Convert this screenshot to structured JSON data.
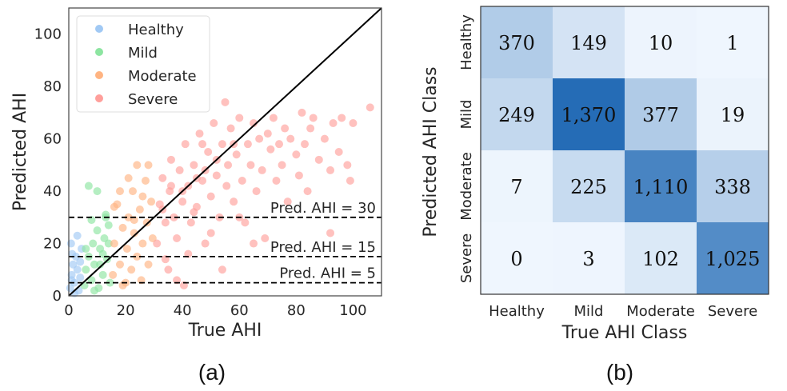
{
  "chart_data": [
    {
      "type": "scatter",
      "panel_label": "(a)",
      "xlabel": "True AHI",
      "ylabel": "Predicted AHI",
      "xlim": [
        0,
        110
      ],
      "ylim": [
        0,
        110
      ],
      "xticks": [
        "0",
        "20",
        "40",
        "60",
        "80",
        "100"
      ],
      "yticks": [
        "0",
        "20",
        "40",
        "60",
        "80",
        "100"
      ],
      "grid": false,
      "legend_position": "top-left",
      "identity_line": true,
      "reference_lines": [
        {
          "y": 30,
          "label": "Pred. AHI = 30"
        },
        {
          "y": 15,
          "label": "Pred. AHI = 15"
        },
        {
          "y": 5,
          "label": "Pred. AHI = 5"
        }
      ],
      "series": [
        {
          "name": "Healthy",
          "color": "#a1c9f4",
          "points": [
            [
              0.5,
              3
            ],
            [
              1,
              8
            ],
            [
              1.5,
              12
            ],
            [
              2,
              5
            ],
            [
              2.5,
              15
            ],
            [
              3,
              10
            ],
            [
              3.5,
              2
            ],
            [
              4,
              7
            ],
            [
              4.5,
              18
            ],
            [
              0.8,
              20
            ],
            [
              1.2,
              16
            ],
            [
              3,
              23
            ],
            [
              2,
              1
            ],
            [
              4,
              13
            ],
            [
              1,
              6
            ]
          ]
        },
        {
          "name": "Mild",
          "color": "#8de5a1",
          "points": [
            [
              5.5,
              4
            ],
            [
              6,
              10
            ],
            [
              7,
              15
            ],
            [
              8,
              6
            ],
            [
              8.5,
              20
            ],
            [
              9,
              12
            ],
            [
              10,
              25
            ],
            [
              10.5,
              3
            ],
            [
              11,
              18
            ],
            [
              12,
              8
            ],
            [
              12.5,
              22
            ],
            [
              13,
              30
            ],
            [
              13.5,
              14
            ],
            [
              14,
              27
            ],
            [
              14.5,
              5
            ],
            [
              7,
              42
            ],
            [
              10,
              40
            ],
            [
              8,
              29
            ],
            [
              6,
              18
            ],
            [
              11,
              12
            ],
            [
              9,
              2
            ],
            [
              13,
              31
            ],
            [
              14,
              20
            ],
            [
              12,
              16
            ]
          ]
        },
        {
          "name": "Moderate",
          "color": "#ffb482",
          "points": [
            [
              15.5,
              8
            ],
            [
              16,
              20
            ],
            [
              17,
              35
            ],
            [
              18,
              12
            ],
            [
              19,
              26
            ],
            [
              20,
              5
            ],
            [
              20.5,
              18
            ],
            [
              21,
              30
            ],
            [
              22,
              10
            ],
            [
              22.5,
              40
            ],
            [
              23,
              24
            ],
            [
              24,
              15
            ],
            [
              25,
              33
            ],
            [
              25.5,
              6
            ],
            [
              26,
              20
            ],
            [
              27,
              44
            ],
            [
              27.5,
              28
            ],
            [
              28,
              12
            ],
            [
              29,
              36
            ],
            [
              29.5,
              22
            ],
            [
              24,
              50
            ],
            [
              18,
              40
            ],
            [
              16,
              34
            ],
            [
              21,
              45
            ],
            [
              28,
              50
            ],
            [
              26,
              38
            ],
            [
              19,
              4
            ],
            [
              23,
              29
            ]
          ]
        },
        {
          "name": "Severe",
          "color": "#ff9f9b",
          "points": [
            [
              31,
              20
            ],
            [
              32,
              35
            ],
            [
              33,
              45
            ],
            [
              34,
              28
            ],
            [
              35,
              10
            ],
            [
              35.5,
              40
            ],
            [
              36,
              52
            ],
            [
              37,
              30
            ],
            [
              38,
              22
            ],
            [
              39,
              48
            ],
            [
              40,
              36
            ],
            [
              40.5,
              4
            ],
            [
              41,
              58
            ],
            [
              42,
              42
            ],
            [
              43,
              28
            ],
            [
              44,
              50
            ],
            [
              45,
              34
            ],
            [
              46,
              62
            ],
            [
              47,
              44
            ],
            [
              48,
              20
            ],
            [
              49,
              55
            ],
            [
              50,
              38
            ],
            [
              51,
              66
            ],
            [
              52,
              46
            ],
            [
              53,
              30
            ],
            [
              54,
              58
            ],
            [
              55,
              74
            ],
            [
              55.5,
              42
            ],
            [
              56,
              50
            ],
            [
              57,
              64
            ],
            [
              58,
              36
            ],
            [
              59,
              54
            ],
            [
              60,
              68
            ],
            [
              61,
              44
            ],
            [
              62,
              28
            ],
            [
              63,
              58
            ],
            [
              64,
              50
            ],
            [
              65,
              66
            ],
            [
              66,
              40
            ],
            [
              67,
              60
            ],
            [
              68,
              48
            ],
            [
              69,
              22
            ],
            [
              70,
              62
            ],
            [
              71,
              56
            ],
            [
              72,
              68
            ],
            [
              73,
              44
            ],
            [
              74,
              58
            ],
            [
              75,
              50
            ],
            [
              76,
              64
            ],
            [
              77,
              36
            ],
            [
              78,
              60
            ],
            [
              80,
              54
            ],
            [
              81,
              46
            ],
            [
              82,
              70
            ],
            [
              83,
              58
            ],
            [
              84,
              40
            ],
            [
              85,
              64
            ],
            [
              86,
              68
            ],
            [
              88,
              52
            ],
            [
              90,
              60
            ],
            [
              92,
              48
            ],
            [
              92,
              24
            ],
            [
              93,
              66
            ],
            [
              95,
              55
            ],
            [
              96,
              68
            ],
            [
              98,
              50
            ],
            [
              99,
              44
            ],
            [
              100,
              66
            ],
            [
              106,
              72
            ],
            [
              34,
              14
            ],
            [
              38,
              6
            ],
            [
              44,
              32
            ],
            [
              42,
              16
            ],
            [
              50,
              24
            ],
            [
              47,
              58
            ],
            [
              36,
              42
            ],
            [
              60,
              30
            ],
            [
              65,
              20
            ],
            [
              54,
              10
            ],
            [
              40,
              40
            ],
            [
              45,
              45
            ],
            [
              52,
              52
            ],
            [
              58,
              58
            ],
            [
              33,
              33
            ],
            [
              48,
              48
            ]
          ]
        }
      ]
    },
    {
      "type": "heatmap",
      "panel_label": "(b)",
      "xlabel": "True AHI Class",
      "ylabel": "Predicted AHI Class",
      "x_categories": [
        "Healthy",
        "Mild",
        "Moderate",
        "Severe"
      ],
      "y_categories": [
        "Healthy",
        "Mild",
        "Moderate",
        "Severe"
      ],
      "colormap": "Blues",
      "values": [
        [
          370,
          149,
          10,
          1
        ],
        [
          249,
          1370,
          377,
          19
        ],
        [
          7,
          225,
          1110,
          338
        ],
        [
          0,
          3,
          102,
          1025
        ]
      ],
      "labels": [
        [
          "370",
          "149",
          "10",
          "1"
        ],
        [
          "249",
          "1,370",
          "377",
          "19"
        ],
        [
          "7",
          "225",
          "1,110",
          "338"
        ],
        [
          "0",
          "3",
          "102",
          "1,025"
        ]
      ]
    }
  ]
}
